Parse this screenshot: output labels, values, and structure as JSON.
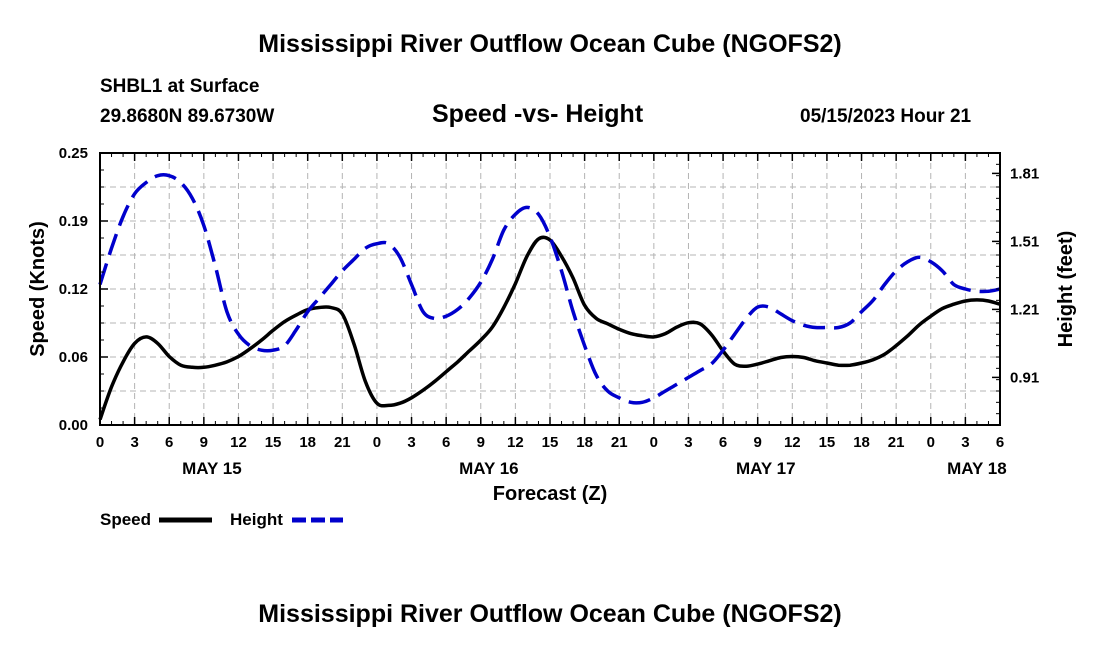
{
  "page": {
    "title_top": "Mississippi River Outflow Ocean Cube (NGOFS2)",
    "title_bottom": "Mississippi River Outflow Ocean Cube (NGOFS2)",
    "station": "SHBL1 at Surface",
    "coords": "29.8680N  89.6730W",
    "datetime": "05/15/2023 Hour 21"
  },
  "chart_data": {
    "type": "line",
    "title": "Speed -vs- Height",
    "xlabel": "Forecast (Z)",
    "ylabel_left": "Speed (Knots)",
    "ylabel_right": "Height (feet)",
    "x_range_hours": [
      0,
      78
    ],
    "x_tick_step_hours": 3,
    "x_tick_labels": [
      "0",
      "3",
      "6",
      "9",
      "12",
      "15",
      "18",
      "21",
      "0",
      "3",
      "6",
      "9",
      "12",
      "15",
      "18",
      "21",
      "0",
      "3",
      "6",
      "9",
      "12",
      "15",
      "18",
      "21",
      "0",
      "3",
      "6"
    ],
    "day_labels": [
      {
        "label": "MAY 15",
        "hour": 9.7
      },
      {
        "label": "MAY 16",
        "hour": 33.7
      },
      {
        "label": "MAY 17",
        "hour": 57.7
      },
      {
        "label": "MAY 18",
        "hour": 76
      }
    ],
    "ylim_left": [
      0,
      0.25
    ],
    "yticks_left": [
      "0.00",
      "0.06",
      "0.12",
      "0.19",
      "0.25"
    ],
    "ylim_right": [
      0.7,
      1.9
    ],
    "yticks_right": [
      "0.91",
      "1.21",
      "1.51",
      "1.81"
    ],
    "grid": true,
    "legend_position": "bottom-left",
    "series": [
      {
        "name": "Speed",
        "axis": "left",
        "color": "#000000",
        "style": "solid",
        "x": [
          0,
          1,
          2,
          3,
          4,
          5,
          6,
          7,
          8,
          9,
          10,
          11,
          12,
          13,
          14,
          15,
          16,
          17,
          18,
          19,
          20,
          21,
          22,
          23,
          24,
          25,
          26,
          27,
          28,
          29,
          30,
          31,
          32,
          33,
          34,
          35,
          36,
          37,
          38,
          39,
          40,
          41,
          42,
          43,
          44,
          45,
          46,
          47,
          48,
          49,
          50,
          51,
          52,
          53,
          54,
          55,
          56,
          57,
          58,
          59,
          60,
          61,
          62,
          63,
          64,
          65,
          66,
          67,
          68,
          69,
          70,
          71,
          72,
          73,
          74,
          75,
          76,
          77,
          78
        ],
        "values": [
          0.005,
          0.035,
          0.058,
          0.075,
          0.081,
          0.075,
          0.063,
          0.055,
          0.053,
          0.053,
          0.055,
          0.058,
          0.063,
          0.07,
          0.078,
          0.087,
          0.095,
          0.101,
          0.106,
          0.108,
          0.108,
          0.102,
          0.075,
          0.04,
          0.02,
          0.018,
          0.02,
          0.025,
          0.032,
          0.04,
          0.049,
          0.058,
          0.068,
          0.078,
          0.09,
          0.108,
          0.13,
          0.155,
          0.171,
          0.17,
          0.155,
          0.135,
          0.11,
          0.098,
          0.093,
          0.088,
          0.084,
          0.082,
          0.081,
          0.084,
          0.09,
          0.094,
          0.093,
          0.083,
          0.068,
          0.056,
          0.054,
          0.056,
          0.059,
          0.062,
          0.063,
          0.062,
          0.059,
          0.057,
          0.055,
          0.055,
          0.057,
          0.06,
          0.065,
          0.073,
          0.082,
          0.092,
          0.1,
          0.107,
          0.111,
          0.114,
          0.115,
          0.114,
          0.111
        ]
      },
      {
        "name": "Height",
        "axis": "right",
        "color": "#0000cc",
        "style": "dashed",
        "x": [
          0,
          1,
          2,
          3,
          4,
          5,
          6,
          7,
          8,
          9,
          10,
          11,
          12,
          13,
          14,
          15,
          16,
          17,
          18,
          19,
          20,
          21,
          22,
          23,
          24,
          25,
          26,
          27,
          28,
          29,
          30,
          31,
          32,
          33,
          34,
          35,
          36,
          37,
          38,
          39,
          40,
          41,
          42,
          43,
          44,
          45,
          46,
          47,
          48,
          49,
          50,
          51,
          52,
          53,
          54,
          55,
          56,
          57,
          58,
          59,
          60,
          61,
          62,
          63,
          64,
          65,
          66,
          67,
          68,
          69,
          70,
          71,
          72,
          73,
          74,
          75,
          76,
          77,
          78
        ],
        "values": [
          1.32,
          1.48,
          1.62,
          1.72,
          1.77,
          1.8,
          1.8,
          1.77,
          1.7,
          1.58,
          1.4,
          1.2,
          1.1,
          1.05,
          1.03,
          1.03,
          1.05,
          1.12,
          1.2,
          1.26,
          1.32,
          1.38,
          1.43,
          1.48,
          1.5,
          1.5,
          1.44,
          1.32,
          1.2,
          1.17,
          1.18,
          1.21,
          1.26,
          1.33,
          1.43,
          1.56,
          1.63,
          1.66,
          1.63,
          1.53,
          1.38,
          1.2,
          1.05,
          0.92,
          0.85,
          0.82,
          0.8,
          0.8,
          0.82,
          0.85,
          0.88,
          0.91,
          0.94,
          0.97,
          1.03,
          1.1,
          1.17,
          1.22,
          1.22,
          1.19,
          1.16,
          1.14,
          1.13,
          1.13,
          1.13,
          1.15,
          1.2,
          1.25,
          1.32,
          1.38,
          1.42,
          1.44,
          1.42,
          1.38,
          1.32,
          1.3,
          1.29,
          1.29,
          1.3
        ]
      }
    ]
  }
}
